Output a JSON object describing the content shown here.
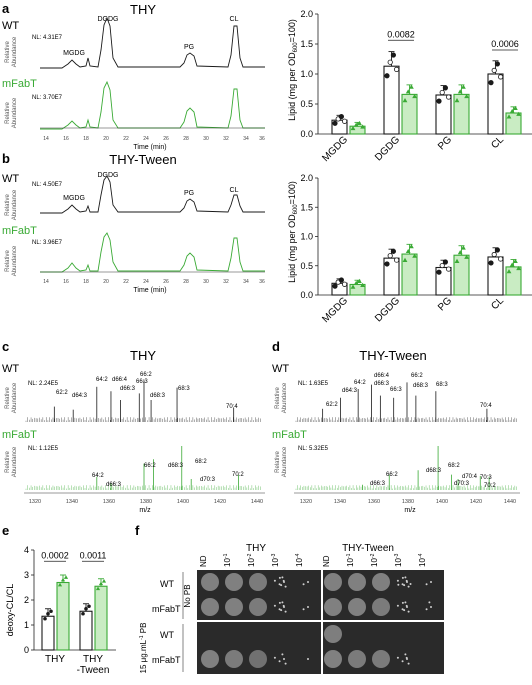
{
  "panels": {
    "a": {
      "letter": "a",
      "title": "THY",
      "wt_label": "WT",
      "mut_label": "mFabT",
      "wt_nl": "NL: 4.31E7",
      "mut_nl": "NL: 3.70E7",
      "peaks": [
        "MGDG",
        "DGDG",
        "PG",
        "CL"
      ],
      "ylabel_line1": "Relative",
      "ylabel_line2": "Abundance",
      "yticks": [
        "100",
        "90",
        "80",
        "70",
        "60",
        "50",
        "40",
        "30",
        "20",
        "10",
        "0"
      ],
      "xticks": [
        "14",
        "16",
        "18",
        "20",
        "22",
        "24",
        "26",
        "28",
        "30",
        "32",
        "34",
        "36"
      ],
      "xlabel": "Time (min)"
    },
    "a_bar": {
      "ylabel": "Lipid (mg per OD600=100)",
      "ylabel_prefix": "Lipid (mg per OD",
      "ylabel_sub": "600",
      "ylabel_suffix": "=100)",
      "yticks": [
        "0.0",
        "0.5",
        "1.0",
        "1.5",
        "2.0"
      ],
      "categories": [
        "MGDG",
        "DGDG",
        "PG",
        "CL"
      ],
      "pvals": [
        "0.0082",
        "0.0006"
      ]
    },
    "b": {
      "letter": "b",
      "title": "THY-Tween",
      "wt_label": "WT",
      "mut_label": "mFabT",
      "wt_nl": "NL: 4.50E7",
      "mut_nl": "NL: 3.96E7",
      "peaks": [
        "MGDG",
        "DGDG",
        "PG",
        "CL"
      ],
      "ylabel_line1": "Relative",
      "ylabel_line2": "Abundance",
      "yticks": [
        "100",
        "90",
        "80",
        "70",
        "60",
        "50",
        "40",
        "30",
        "20",
        "10",
        "0"
      ],
      "xticks": [
        "14",
        "16",
        "18",
        "20",
        "22",
        "24",
        "26",
        "28",
        "30",
        "32",
        "34",
        "36"
      ],
      "xlabel": "Time (min)"
    },
    "b_bar": {
      "ylabel_prefix": "Lipid (mg per OD",
      "ylabel_sub": "600",
      "ylabel_suffix": "=100)",
      "yticks": [
        "0.0",
        "0.5",
        "1.0",
        "1.5",
        "2.0"
      ],
      "categories": [
        "MGDG",
        "DGDG",
        "PG",
        "CL"
      ]
    },
    "c": {
      "letter": "c",
      "title": "THY",
      "wt_label": "WT",
      "mut_label": "mFabT",
      "wt_nl": "NL: 2.24E5",
      "mut_nl": "NL: 1.12E5",
      "wt_labels": [
        "62:2",
        "d64:3",
        "64:2",
        "d66:4",
        "d66:3",
        "66:3",
        "66:2",
        "d68:3",
        "68:3",
        "70:4"
      ],
      "mut_labels": [
        "64:2",
        "d66:3",
        "66:2",
        "d68:3",
        "68:2",
        "d70:3",
        "70:2"
      ],
      "ylabel_line1": "Relative",
      "ylabel_line2": "Abundance",
      "xticks": [
        "1320",
        "1340",
        "1360",
        "1380",
        "1400",
        "1420",
        "1440"
      ],
      "xlabel": "m/z"
    },
    "d": {
      "letter": "d",
      "title": "THY-Tween",
      "wt_label": "WT",
      "mut_label": "mFabT",
      "wt_nl": "NL: 1.63E5",
      "mut_nl": "NL: 5.32E5",
      "wt_labels": [
        "62:2",
        "d64:3",
        "64:2",
        "d66:4",
        "d66:3",
        "66:3",
        "66:2",
        "d68:3",
        "68:3",
        "70:4"
      ],
      "mut_labels": [
        "d66:3",
        "66:2",
        "d68:3",
        "68:2",
        "d70:4",
        "d70:3",
        "70:3",
        "70:2"
      ],
      "ylabel_line1": "Relative",
      "ylabel_line2": "Abundance",
      "xticks": [
        "1320",
        "1340",
        "1360",
        "1380",
        "1400",
        "1420",
        "1440"
      ],
      "xlabel": "m/z"
    },
    "e": {
      "letter": "e",
      "ylabel": "deoxy-CL/CL",
      "yticks": [
        "0",
        "1",
        "2",
        "3",
        "4"
      ],
      "categories_line1": [
        "THY",
        "THY"
      ],
      "categories_line2": [
        "",
        "-Tween"
      ],
      "pvals": [
        "0.0002",
        "0.0011"
      ]
    },
    "f": {
      "letter": "f",
      "group_labels": [
        "THY",
        "THY-Tween"
      ],
      "dilutions": [
        "ND",
        "10",
        "10",
        "10",
        "10"
      ],
      "dilution_exps": [
        "",
        "-1",
        "-2",
        "-3",
        "-4"
      ],
      "row_strains": [
        "WT",
        "mFabT",
        "WT",
        "mFabT"
      ],
      "condition_labels": [
        "No PB",
        "15 μg.mL",
        "-1",
        " PB"
      ]
    }
  },
  "colors": {
    "wt": "#1a1a1a",
    "mut": "#3aaa35",
    "mut_fill": "#c9ecc3",
    "wt_fill": "#ffffff"
  },
  "chart_data": [
    {
      "type": "bar",
      "title": "",
      "ylabel": "Lipid (mg per OD600=100)",
      "ylim": [
        0,
        2.0
      ],
      "categories": [
        "MGDG",
        "DGDG",
        "PG",
        "CL"
      ],
      "series": [
        {
          "name": "WT",
          "values": [
            0.23,
            1.13,
            0.65,
            1.0
          ]
        },
        {
          "name": "mFabT",
          "values": [
            0.13,
            0.66,
            0.66,
            0.35
          ]
        }
      ],
      "annotations": [
        {
          "between": "DGDG",
          "p": "0.0082"
        },
        {
          "between": "CL",
          "p": "0.0006"
        }
      ]
    },
    {
      "type": "bar",
      "title": "",
      "ylabel": "Lipid (mg per OD600=100)",
      "ylim": [
        0,
        2.0
      ],
      "categories": [
        "MGDG",
        "DGDG",
        "PG",
        "CL"
      ],
      "series": [
        {
          "name": "WT",
          "values": [
            0.2,
            0.63,
            0.47,
            0.65
          ]
        },
        {
          "name": "mFabT",
          "values": [
            0.18,
            0.7,
            0.68,
            0.48
          ]
        }
      ]
    },
    {
      "type": "bar",
      "title": "",
      "ylabel": "deoxy-CL/CL",
      "ylim": [
        0,
        4
      ],
      "categories": [
        "THY",
        "THY -Tween"
      ],
      "series": [
        {
          "name": "WT",
          "values": [
            1.35,
            1.55
          ]
        },
        {
          "name": "mFabT",
          "values": [
            2.7,
            2.55
          ]
        }
      ],
      "annotations": [
        {
          "between": "THY",
          "p": "0.0002"
        },
        {
          "between": "THY -Tween",
          "p": "0.0011"
        }
      ]
    }
  ]
}
